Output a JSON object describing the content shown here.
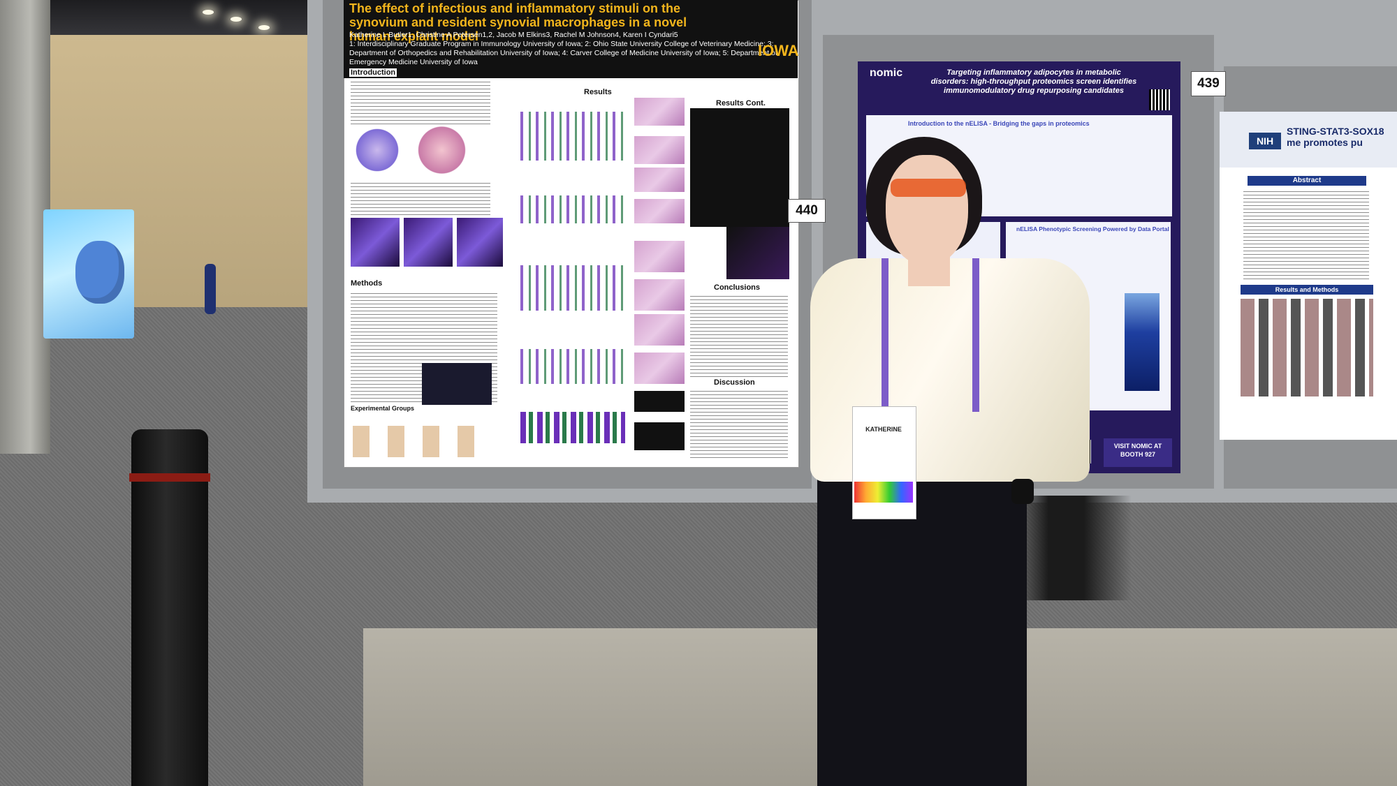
{
  "poster_iowa": {
    "title": "The effect of infectious and inflammatory stimuli on the synovium and resident synovial macrophages in a novel human explant model",
    "authors": "Katherine L Butler1, Christine A Petersen1,2, Jacob M Elkins3, Rachel M Johnson4, Karen I Cyndari5",
    "affiliations": "1: Interdisciplinary Graduate Program in Immunology University of Iowa; 2: Ohio State University College of Veterinary Medicine; 3: Department of Orthopedics and Rehabilitation University of Iowa; 4: Carver College of Medicine University of Iowa; 5: Department of Emergency Medicine University of Iowa",
    "logo": "IOWA",
    "introduction": "Introduction",
    "results": "Results",
    "results_cont": "Results Cont.",
    "methods": "Methods",
    "conclusions": "Conclusions",
    "discussion": "Discussion",
    "experimental_groups": "Experimental Groups"
  },
  "board_numbers": {
    "left": "440",
    "right": "439"
  },
  "poster_nomic": {
    "logo": "nomic",
    "title": "Targeting inflammatory adipocytes in metabolic disorders: high-throughput proteomics screen identifies immunomodulatory drug repurposing candidates",
    "intro": "Introduction to the nELISA - Bridging the gaps in proteomics",
    "phenotypic": "nELISA Phenotypic Screening Powered by Data Portal",
    "booth": "VISIT NOMIC AT BOOTH 927"
  },
  "poster_nih": {
    "logo": "NIH",
    "title": "STING-STAT3-SOX18 me promotes pu",
    "abstract": "Abstract",
    "results": "Results and Methods"
  },
  "badge": {
    "name": "KATHERINE"
  }
}
